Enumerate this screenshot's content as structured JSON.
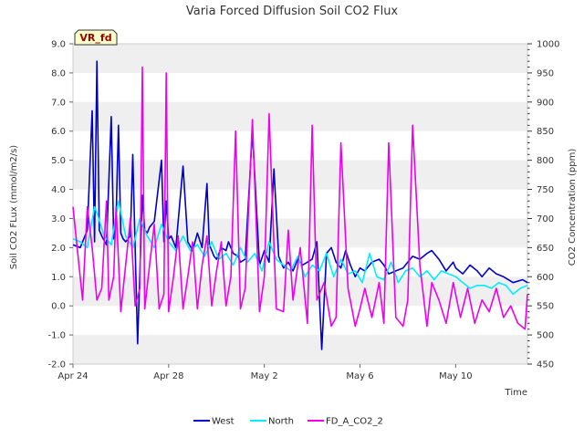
{
  "chart_data": {
    "type": "line",
    "title": "Varia Forced Diffusion Soil CO2 Flux",
    "xlabel": "Time",
    "ylabel": "Soil CO2 FLux (mmol/m2/s)",
    "y2label": "CO2 Concentration (ppm)",
    "badge": "VR_fd",
    "x_tick_labels": [
      "Apr 24",
      "Apr 28",
      "May 2",
      "May 6",
      "May 10"
    ],
    "y_tick_labels": [
      "-2.0",
      "-1.0",
      "0.0",
      "1.0",
      "2.0",
      "3.0",
      "4.0",
      "5.0",
      "6.0",
      "7.0",
      "8.0",
      "9.0"
    ],
    "y2_tick_labels": [
      "450",
      "500",
      "550",
      "600",
      "650",
      "700",
      "750",
      "800",
      "850",
      "900",
      "950",
      "1000"
    ],
    "xlim": [
      0,
      19
    ],
    "ylim": [
      -2,
      9
    ],
    "y2lim": [
      450,
      1000
    ],
    "grid": "horizontal bands",
    "legend_position": "bottom",
    "series": [
      {
        "name": "West",
        "axis": "left",
        "color": "#0000cc",
        "x": [
          0.0,
          0.3,
          0.6,
          0.8,
          0.9,
          1.0,
          1.1,
          1.2,
          1.4,
          1.6,
          1.7,
          1.8,
          1.9,
          2.0,
          2.1,
          2.2,
          2.4,
          2.5,
          2.7,
          2.9,
          3.0,
          3.1,
          3.2,
          3.4,
          3.7,
          3.8,
          3.9,
          4.0,
          4.1,
          4.3,
          4.6,
          4.8,
          5.0,
          5.2,
          5.4,
          5.6,
          5.7,
          5.9,
          6.0,
          6.2,
          6.4,
          6.5,
          6.7,
          6.9,
          7.0,
          7.2,
          7.5,
          7.8,
          8.0,
          8.2,
          8.4,
          8.6,
          8.8,
          9.0,
          9.2,
          9.4,
          9.6,
          9.8,
          10.0,
          10.2,
          10.4,
          10.6,
          10.8,
          11.0,
          11.2,
          11.4,
          11.6,
          11.8,
          12.0,
          12.2,
          12.5,
          12.8,
          13.0,
          13.2,
          13.5,
          13.8,
          14.0,
          14.2,
          14.5,
          14.8,
          15.0,
          15.3,
          15.6,
          15.9,
          16.0,
          16.3,
          16.6,
          16.9,
          17.1,
          17.4,
          17.7,
          18.0,
          18.4,
          18.8,
          19.0
        ],
        "y": [
          2.1,
          2.0,
          2.6,
          6.7,
          2.2,
          8.4,
          2.6,
          2.4,
          2.1,
          6.5,
          2.3,
          3.0,
          6.2,
          2.5,
          2.3,
          2.2,
          2.4,
          5.2,
          -1.3,
          3.8,
          2.6,
          2.5,
          2.7,
          2.9,
          5.0,
          2.2,
          3.6,
          2.3,
          2.4,
          2.0,
          4.8,
          2.2,
          1.9,
          2.5,
          2.0,
          4.2,
          2.1,
          1.7,
          1.6,
          2.0,
          1.9,
          2.2,
          1.8,
          1.7,
          1.5,
          1.6,
          6.0,
          1.4,
          1.9,
          1.5,
          4.7,
          1.7,
          1.3,
          1.5,
          1.2,
          1.6,
          1.4,
          1.5,
          1.6,
          2.2,
          -1.5,
          1.8,
          2.0,
          1.5,
          1.3,
          1.9,
          1.4,
          1.0,
          1.3,
          1.2,
          1.5,
          1.6,
          1.4,
          1.1,
          1.2,
          1.3,
          1.5,
          1.7,
          1.6,
          1.8,
          1.9,
          1.6,
          1.2,
          1.5,
          1.3,
          1.1,
          1.4,
          1.2,
          1.0,
          1.3,
          1.1,
          1.0,
          0.8,
          0.9,
          0.8
        ]
      },
      {
        "name": "North",
        "axis": "left",
        "color": "#00eeff",
        "x": [
          0.0,
          0.3,
          0.6,
          0.9,
          1.0,
          1.3,
          1.6,
          1.9,
          2.2,
          2.5,
          2.8,
          3.1,
          3.4,
          3.7,
          4.0,
          4.3,
          4.6,
          4.9,
          5.2,
          5.5,
          5.8,
          6.1,
          6.4,
          6.7,
          7.0,
          7.3,
          7.6,
          7.9,
          8.2,
          8.5,
          8.8,
          9.1,
          9.4,
          9.7,
          10.0,
          10.3,
          10.6,
          10.9,
          11.2,
          11.5,
          11.8,
          12.1,
          12.4,
          12.7,
          13.0,
          13.3,
          13.6,
          13.9,
          14.2,
          14.5,
          14.8,
          15.1,
          15.4,
          15.7,
          16.0,
          16.3,
          16.6,
          16.9,
          17.2,
          17.5,
          17.8,
          18.1,
          18.4,
          18.7,
          19.0
        ],
        "y": [
          2.3,
          2.2,
          2.0,
          3.4,
          3.2,
          2.4,
          2.1,
          3.6,
          2.4,
          2.0,
          3.0,
          2.4,
          2.0,
          2.8,
          2.2,
          1.9,
          2.4,
          1.9,
          2.1,
          1.7,
          2.2,
          1.6,
          1.8,
          1.4,
          2.0,
          1.5,
          1.8,
          1.2,
          2.2,
          1.6,
          1.4,
          1.2,
          1.7,
          1.0,
          1.4,
          1.2,
          1.8,
          1.0,
          1.6,
          1.1,
          1.2,
          0.8,
          1.8,
          1.0,
          0.9,
          1.5,
          0.8,
          1.2,
          1.3,
          1.0,
          1.2,
          0.9,
          1.2,
          1.1,
          1.0,
          0.8,
          0.6,
          0.7,
          0.7,
          0.6,
          0.8,
          0.7,
          0.4,
          0.6,
          0.7
        ]
      },
      {
        "name": "FD_A_CO2_2",
        "axis": "right",
        "color": "#ee00ee",
        "x": [
          0.0,
          0.2,
          0.4,
          0.6,
          0.8,
          1.0,
          1.2,
          1.4,
          1.5,
          1.7,
          1.8,
          2.0,
          2.2,
          2.4,
          2.6,
          2.8,
          2.9,
          3.0,
          3.2,
          3.4,
          3.6,
          3.8,
          3.9,
          4.0,
          4.2,
          4.4,
          4.6,
          4.8,
          5.0,
          5.2,
          5.4,
          5.6,
          5.8,
          6.0,
          6.2,
          6.4,
          6.6,
          6.8,
          7.0,
          7.2,
          7.5,
          7.8,
          8.0,
          8.2,
          8.5,
          8.8,
          9.0,
          9.2,
          9.5,
          9.8,
          10.0,
          10.2,
          10.5,
          10.8,
          11.0,
          11.2,
          11.5,
          11.8,
          12.0,
          12.2,
          12.5,
          12.8,
          13.0,
          13.2,
          13.5,
          13.8,
          14.0,
          14.2,
          14.5,
          14.8,
          15.0,
          15.3,
          15.6,
          15.9,
          16.2,
          16.5,
          16.8,
          17.1,
          17.4,
          17.7,
          18.0,
          18.3,
          18.6,
          18.9,
          19.0
        ],
        "y": [
          720,
          640,
          560,
          720,
          650,
          560,
          580,
          730,
          560,
          600,
          720,
          540,
          620,
          700,
          550,
          580,
          960,
          545,
          620,
          690,
          545,
          570,
          950,
          540,
          600,
          670,
          545,
          600,
          660,
          545,
          620,
          670,
          550,
          610,
          660,
          550,
          600,
          850,
          545,
          580,
          870,
          540,
          600,
          880,
          545,
          540,
          680,
          560,
          650,
          520,
          860,
          560,
          590,
          515,
          530,
          830,
          580,
          515,
          545,
          580,
          530,
          590,
          520,
          830,
          530,
          515,
          560,
          860,
          620,
          515,
          590,
          560,
          520,
          590,
          530,
          580,
          520,
          560,
          540,
          580,
          530,
          550,
          520,
          510,
          570
        ]
      }
    ]
  }
}
